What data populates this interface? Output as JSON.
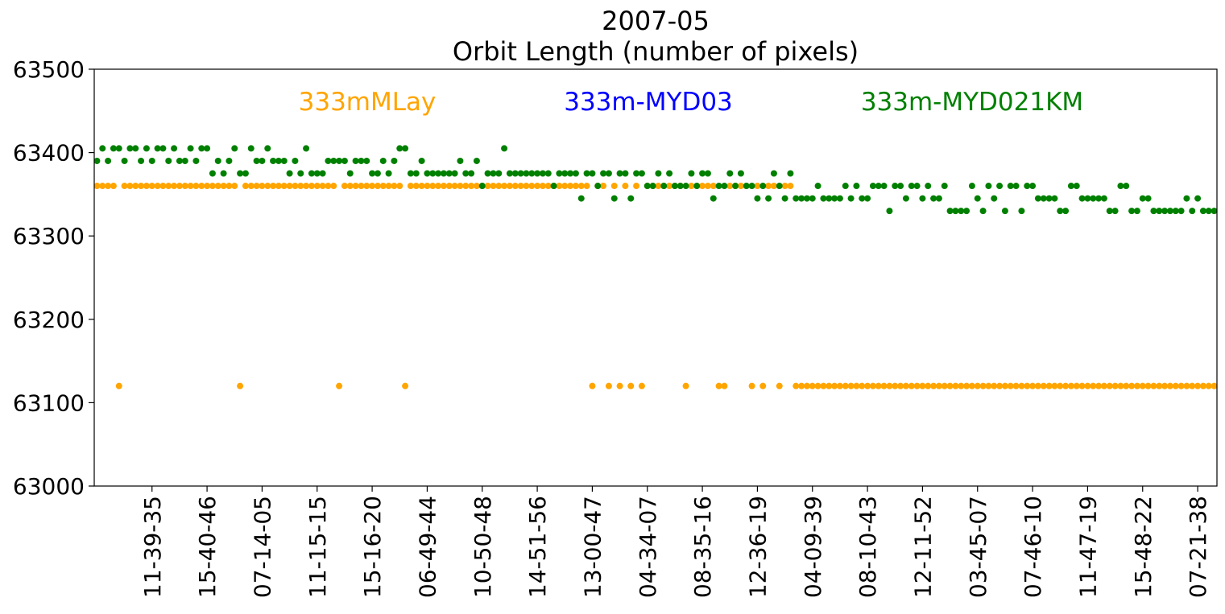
{
  "chart_data": {
    "type": "scatter",
    "title": "2007-05",
    "subtitle": "Orbit Length (number of pixels)",
    "xlabel": "",
    "ylabel": "",
    "ylim": [
      63000,
      63500
    ],
    "yticks": [
      63000,
      63100,
      63200,
      63300,
      63400,
      63500
    ],
    "xlim": [
      -0.5,
      203.5
    ],
    "xticks": [
      {
        "i": 10,
        "label": "11-39-35"
      },
      {
        "i": 20,
        "label": "15-40-46"
      },
      {
        "i": 30,
        "label": "07-14-05"
      },
      {
        "i": 40,
        "label": "11-15-15"
      },
      {
        "i": 50,
        "label": "15-16-20"
      },
      {
        "i": 60,
        "label": "06-49-44"
      },
      {
        "i": 70,
        "label": "10-50-48"
      },
      {
        "i": 80,
        "label": "14-51-56"
      },
      {
        "i": 90,
        "label": "13-00-47"
      },
      {
        "i": 100,
        "label": "04-34-07"
      },
      {
        "i": 110,
        "label": "08-35-16"
      },
      {
        "i": 120,
        "label": "12-36-19"
      },
      {
        "i": 130,
        "label": "04-09-39"
      },
      {
        "i": 140,
        "label": "08-10-43"
      },
      {
        "i": 150,
        "label": "12-11-52"
      },
      {
        "i": 160,
        "label": "03-45-07"
      },
      {
        "i": 170,
        "label": "07-46-10"
      },
      {
        "i": 180,
        "label": "11-47-19"
      },
      {
        "i": 190,
        "label": "15-48-22"
      },
      {
        "i": 200,
        "label": "07-21-38"
      }
    ],
    "grid": false,
    "series": [
      {
        "name": "333mMLay",
        "color": "#ffa500",
        "values": [
          63360,
          63360,
          63360,
          63360,
          63120,
          63360,
          63360,
          63360,
          63360,
          63360,
          63360,
          63360,
          63360,
          63360,
          63360,
          63360,
          63360,
          63360,
          63360,
          63360,
          63360,
          63360,
          63360,
          63360,
          63360,
          63360,
          63120,
          63360,
          63360,
          63360,
          63360,
          63360,
          63360,
          63360,
          63360,
          63360,
          63360,
          63360,
          63360,
          63360,
          63360,
          63360,
          63360,
          63360,
          63120,
          63360,
          63360,
          63360,
          63360,
          63360,
          63360,
          63360,
          63360,
          63360,
          63360,
          63360,
          63120,
          63360,
          63360,
          63360,
          63360,
          63360,
          63360,
          63360,
          63360,
          63360,
          63360,
          63360,
          63360,
          63360,
          63360,
          63360,
          63360,
          63360,
          63360,
          63360,
          63360,
          63360,
          63360,
          63360,
          63360,
          63360,
          63360,
          63360,
          63360,
          63360,
          63360,
          63360,
          63360,
          63360,
          63120,
          63360,
          63360,
          63120,
          63360,
          63120,
          63360,
          63120,
          63360,
          63120,
          63360,
          63360,
          63360,
          63360,
          63360,
          63360,
          63360,
          63120,
          63360,
          63360,
          63360,
          63360,
          63360,
          63120,
          63120,
          63360,
          63360,
          63360,
          63360,
          63120,
          63360,
          63120,
          63360,
          63360,
          63120,
          63360,
          63360,
          63120,
          63120,
          63120,
          63120,
          63120,
          63120,
          63120,
          63120,
          63120,
          63120,
          63120,
          63120,
          63120,
          63120,
          63120,
          63120,
          63120,
          63120,
          63120,
          63120,
          63120,
          63120,
          63120,
          63120,
          63120,
          63120,
          63120,
          63120,
          63120,
          63120,
          63120,
          63120,
          63120,
          63120,
          63120,
          63120,
          63120,
          63120,
          63120,
          63120,
          63120,
          63120,
          63120,
          63120,
          63120,
          63120,
          63120,
          63120,
          63120,
          63120,
          63120,
          63120,
          63120,
          63120,
          63120,
          63120,
          63120,
          63120,
          63120,
          63120,
          63120,
          63120,
          63120,
          63120,
          63120,
          63120,
          63120,
          63120,
          63120,
          63120,
          63120,
          63120,
          63120,
          63120,
          63120,
          63120,
          63120
        ]
      },
      {
        "name": "333m-MYD03",
        "color": "#0000ff",
        "values": []
      },
      {
        "name": "333m-MYD021KM",
        "color": "#008000",
        "values": [
          63390,
          63405,
          63390,
          63405,
          63405,
          63390,
          63405,
          63405,
          63390,
          63405,
          63390,
          63405,
          63405,
          63390,
          63405,
          63390,
          63390,
          63405,
          63390,
          63405,
          63405,
          63375,
          63390,
          63375,
          63390,
          63405,
          63375,
          63375,
          63405,
          63390,
          63390,
          63405,
          63390,
          63390,
          63390,
          63375,
          63390,
          63375,
          63405,
          63375,
          63375,
          63375,
          63390,
          63390,
          63390,
          63390,
          63375,
          63390,
          63390,
          63390,
          63375,
          63375,
          63390,
          63375,
          63390,
          63405,
          63405,
          63375,
          63375,
          63390,
          63375,
          63375,
          63375,
          63375,
          63375,
          63375,
          63390,
          63375,
          63375,
          63390,
          63360,
          63375,
          63375,
          63375,
          63405,
          63375,
          63375,
          63375,
          63375,
          63375,
          63375,
          63375,
          63375,
          63360,
          63375,
          63375,
          63375,
          63375,
          63345,
          63375,
          63375,
          63360,
          63375,
          63375,
          63345,
          63375,
          63375,
          63345,
          63375,
          63375,
          63360,
          63360,
          63375,
          63360,
          63375,
          63360,
          63360,
          63360,
          63375,
          63360,
          63375,
          63375,
          63345,
          63360,
          63360,
          63375,
          63360,
          63375,
          63360,
          63360,
          63345,
          63360,
          63345,
          63375,
          63360,
          63345,
          63375,
          63345,
          63345,
          63345,
          63345,
          63360,
          63345,
          63345,
          63345,
          63345,
          63360,
          63345,
          63360,
          63345,
          63345,
          63360,
          63360,
          63360,
          63330,
          63360,
          63360,
          63345,
          63360,
          63360,
          63345,
          63360,
          63345,
          63345,
          63360,
          63330,
          63330,
          63330,
          63330,
          63360,
          63345,
          63330,
          63360,
          63345,
          63360,
          63330,
          63360,
          63360,
          63330,
          63360,
          63360,
          63345,
          63345,
          63345,
          63345,
          63330,
          63330,
          63360,
          63360,
          63345,
          63345,
          63345,
          63345,
          63345,
          63330,
          63330,
          63360,
          63360,
          63330,
          63330,
          63345,
          63345,
          63330,
          63330,
          63330,
          63330,
          63330,
          63330,
          63345,
          63330,
          63345,
          63330,
          63330,
          63330
        ]
      }
    ]
  }
}
